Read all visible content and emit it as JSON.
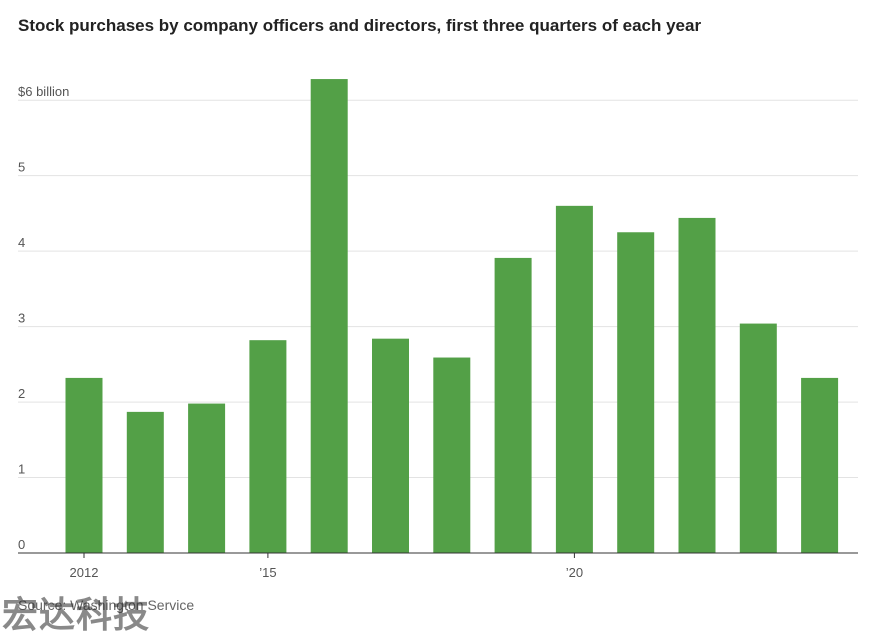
{
  "chart_data": {
    "type": "bar",
    "title": "Stock purchases by company officers and directors, first three quarters of each year",
    "x": [
      2012,
      2013,
      2014,
      2015,
      2016,
      2017,
      2018,
      2019,
      2020,
      2021,
      2022,
      2023,
      2024
    ],
    "values": [
      2.32,
      1.87,
      1.98,
      2.82,
      6.28,
      2.84,
      2.59,
      3.91,
      4.6,
      4.25,
      4.44,
      3.04,
      2.32
    ],
    "x_tick_labels": [
      {
        "x": 2012,
        "label": "2012"
      },
      {
        "x": 2015,
        "label": "’15"
      },
      {
        "x": 2020,
        "label": "’20"
      }
    ],
    "y_ticks": [
      {
        "value": 0,
        "label": "0"
      },
      {
        "value": 1,
        "label": "1"
      },
      {
        "value": 2,
        "label": "2"
      },
      {
        "value": 3,
        "label": "3"
      },
      {
        "value": 4,
        "label": "4"
      },
      {
        "value": 5,
        "label": "5"
      },
      {
        "value": 6,
        "label": "$6 billion"
      }
    ],
    "ylim": [
      0,
      6.4
    ],
    "grid": true,
    "legend": "none",
    "bar_color": "#53a047",
    "gridline_color": "#e3e3e3",
    "axis_color": "#333333"
  },
  "source": "Source: Washington Service",
  "watermark": "宏达科技"
}
